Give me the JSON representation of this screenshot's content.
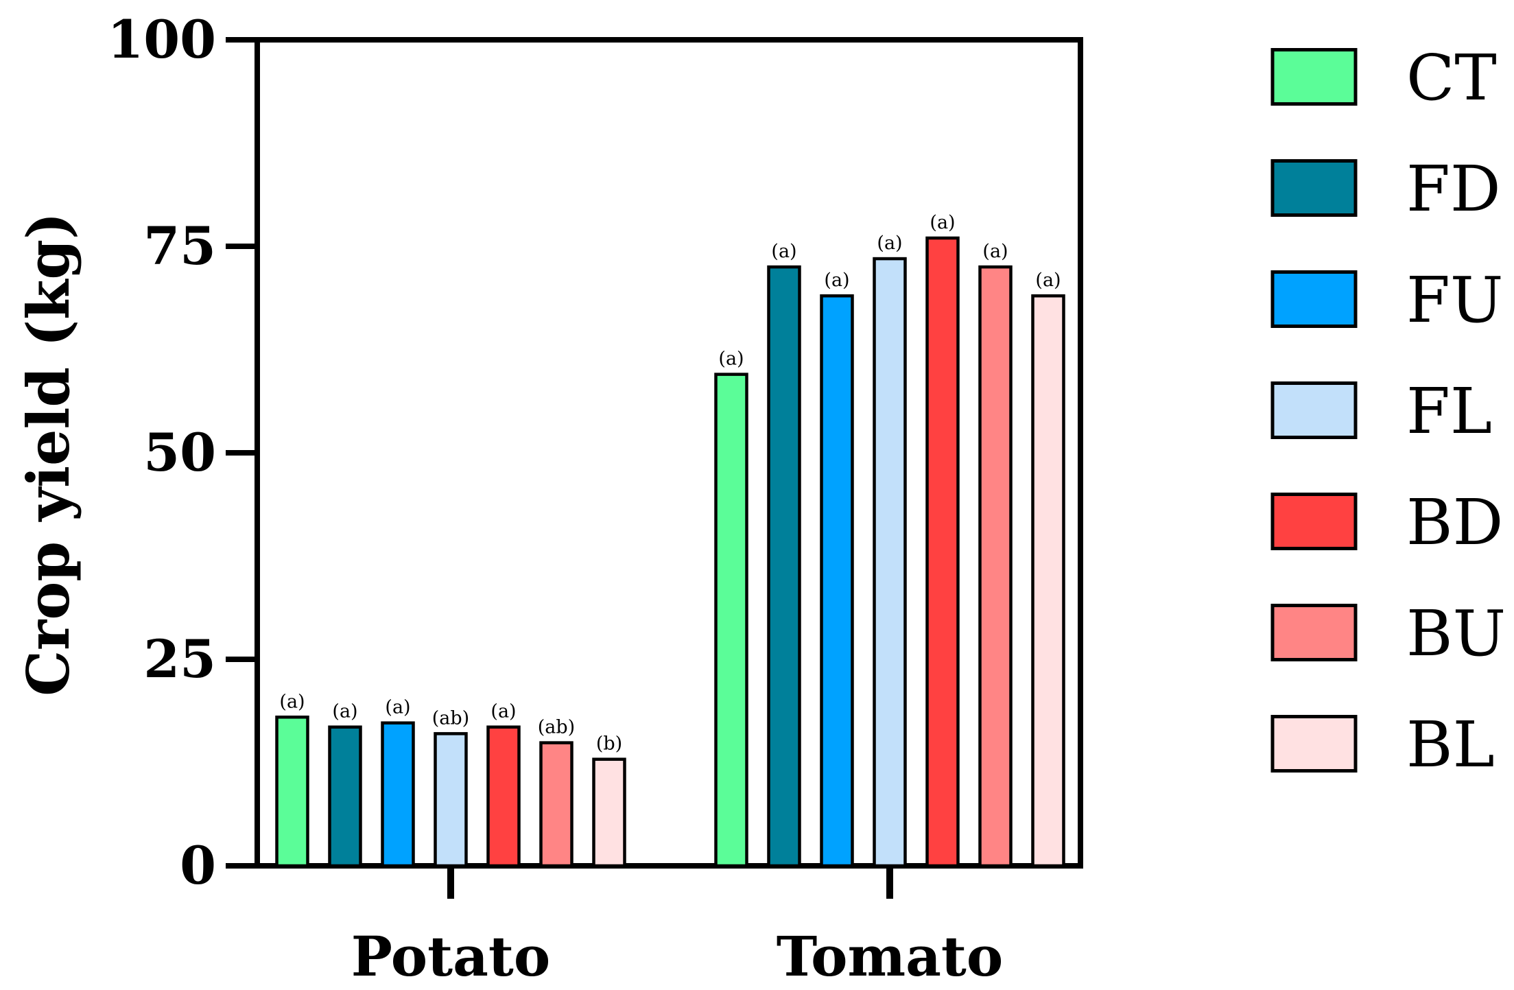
{
  "chart_data": {
    "type": "bar",
    "categories": [
      "Potato",
      "Tomato"
    ],
    "ylabel": "Crop yield (kg)",
    "xlabel": "",
    "ylim": [
      0,
      100
    ],
    "yticks": [
      "0",
      "25",
      "50",
      "75",
      "100"
    ],
    "legend_position": "right",
    "series": [
      {
        "name": "CT",
        "color": "#5bfd98",
        "values": [
          18,
          59.5
        ],
        "letters": [
          "(a)",
          "(a)"
        ]
      },
      {
        "name": "FD",
        "color": "#00809a",
        "values": [
          16.8,
          72.5
        ],
        "letters": [
          "(a)",
          "(a)"
        ]
      },
      {
        "name": "FU",
        "color": "#00a2ff",
        "values": [
          17.3,
          69
        ],
        "letters": [
          "(a)",
          "(a)"
        ]
      },
      {
        "name": "FL",
        "color": "#c2e0fa",
        "values": [
          16,
          73.5
        ],
        "letters": [
          "(ab)",
          "(a)"
        ]
      },
      {
        "name": "BD",
        "color": "#ff4141",
        "values": [
          16.8,
          76
        ],
        "letters": [
          "(a)",
          "(a)"
        ]
      },
      {
        "name": "BU",
        "color": "#ff8585",
        "values": [
          14.9,
          72.5
        ],
        "letters": [
          "(ab)",
          "(a)"
        ]
      },
      {
        "name": "BL",
        "color": "#ffe1e2",
        "values": [
          12.9,
          69
        ],
        "letters": [
          "(b)",
          "(a)"
        ]
      }
    ]
  }
}
